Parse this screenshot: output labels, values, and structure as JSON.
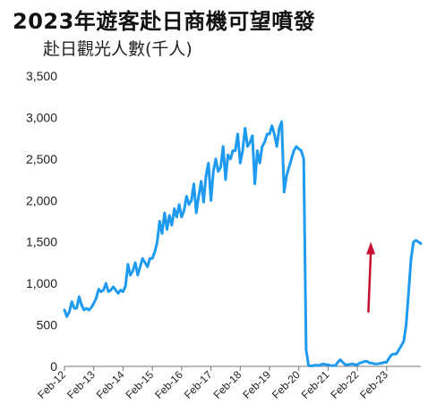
{
  "title": "2023年遊客赴日商機可望噴發",
  "subtitle": "赴日觀光人數(千人)",
  "colors": {
    "line": "#1e9bf0",
    "arrow": "#c8102e",
    "axis": "#777777",
    "text": "#222222"
  },
  "chart_data": {
    "type": "line",
    "title": "2023年遊客赴日商機可望噴發",
    "subtitle": "赴日觀光人數(千人)",
    "xlabel": "",
    "ylabel": "",
    "ylim": [
      0,
      3500
    ],
    "yticks": [
      0,
      500,
      1000,
      1500,
      2000,
      2500,
      3000,
      3500
    ],
    "ytick_labels": [
      "0",
      "500",
      "1,000",
      "1,500",
      "2,000",
      "2,500",
      "3,000",
      "3,500"
    ],
    "xticks": [
      "Feb-12",
      "Feb-13",
      "Feb-14",
      "Feb-15",
      "Feb-16",
      "Feb-17",
      "Feb-18",
      "Feb-19",
      "Feb-20",
      "Feb-21",
      "Feb-22",
      "Feb-23"
    ],
    "grid": false,
    "legend": "none",
    "annotation": "upward red arrow (Feb-22 to late 2022)",
    "series": [
      {
        "values": [
          680,
          600,
          660,
          780,
          700,
          700,
          840,
          740,
          680,
          700,
          680,
          710,
          760,
          820,
          930,
          900,
          920,
          1000,
          900,
          920,
          960,
          920,
          880,
          920,
          900,
          970,
          1230,
          1100,
          1150,
          1250,
          1100,
          1200,
          1300,
          1250,
          1200,
          1300,
          1300,
          1380,
          1500,
          1750,
          1600,
          1850,
          1650,
          1820,
          1700,
          1900,
          1800,
          1950,
          1800,
          1880,
          2050,
          1950,
          2000,
          2200,
          1850,
          2050,
          2230,
          1980,
          2300,
          2450,
          2000,
          2350,
          2500,
          2350,
          2400,
          2650,
          2250,
          2550,
          2500,
          2600,
          2600,
          2800,
          2450,
          2600,
          2870,
          2650,
          2700,
          2780,
          2200,
          2600,
          2450,
          2650,
          2700,
          2800,
          2800,
          2900,
          2800,
          2650,
          2870,
          2950,
          2100,
          2300,
          2400,
          2500,
          2600,
          2650,
          2620,
          2600,
          2500,
          200,
          10,
          5,
          10,
          15,
          10,
          20,
          30,
          20,
          20,
          10,
          10,
          10,
          50,
          80,
          50,
          20,
          20,
          25,
          30,
          20,
          20,
          40,
          50,
          60,
          60,
          40,
          40,
          30,
          30,
          35,
          40,
          50,
          50,
          100,
          140,
          150,
          150,
          200,
          250,
          300,
          500,
          900,
          1300,
          1500,
          1520,
          1500,
          1480
        ]
      }
    ]
  }
}
